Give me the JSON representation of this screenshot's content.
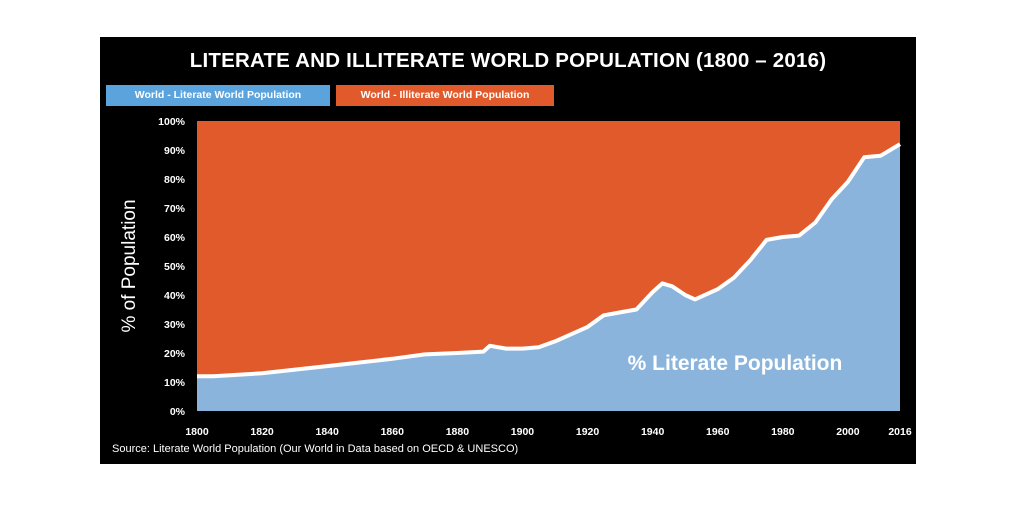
{
  "chart_data": {
    "type": "area",
    "title": "LITERATE AND ILLITERATE WORLD POPULATION (1800 – 2016)",
    "legend": [
      "World - Literate World Population",
      "World - Illiterate World Population"
    ],
    "legend_placement": "top-left",
    "colors": {
      "literate": "#8ab4dc",
      "illiterate": "#e05a2b",
      "line": "#ffffff"
    },
    "ylabel": "% of Population",
    "xlabel": "",
    "ylim": [
      0,
      100
    ],
    "xlim": [
      1800,
      2016
    ],
    "yticks": [
      "0%",
      "10%",
      "20%",
      "30%",
      "40%",
      "50%",
      "60%",
      "70%",
      "80%",
      "90%",
      "100%"
    ],
    "xticks": [
      1800,
      1820,
      1840,
      1860,
      1880,
      1900,
      1920,
      1940,
      1960,
      1980,
      2000,
      2016
    ],
    "annotation": "% Literate Population",
    "source": "Source: Literate World Population (Our World in Data based on OECD & UNESCO)",
    "series": [
      {
        "name": "Literate",
        "x": [
          1800,
          1805,
          1820,
          1840,
          1860,
          1870,
          1880,
          1888,
          1890,
          1895,
          1900,
          1905,
          1910,
          1920,
          1925,
          1930,
          1935,
          1940,
          1943,
          1946,
          1950,
          1953,
          1960,
          1965,
          1970,
          1975,
          1980,
          1985,
          1990,
          1995,
          2000,
          2005,
          2010,
          2016
        ],
        "values": [
          12,
          12,
          13,
          15.5,
          18,
          19.5,
          20,
          20.5,
          22.5,
          21.5,
          21.5,
          22,
          24,
          29,
          33,
          34,
          35,
          41,
          44,
          43,
          40,
          38.5,
          42,
          46,
          52,
          59,
          60,
          60.5,
          65,
          73,
          79,
          87.5,
          88,
          92
        ]
      }
    ]
  }
}
